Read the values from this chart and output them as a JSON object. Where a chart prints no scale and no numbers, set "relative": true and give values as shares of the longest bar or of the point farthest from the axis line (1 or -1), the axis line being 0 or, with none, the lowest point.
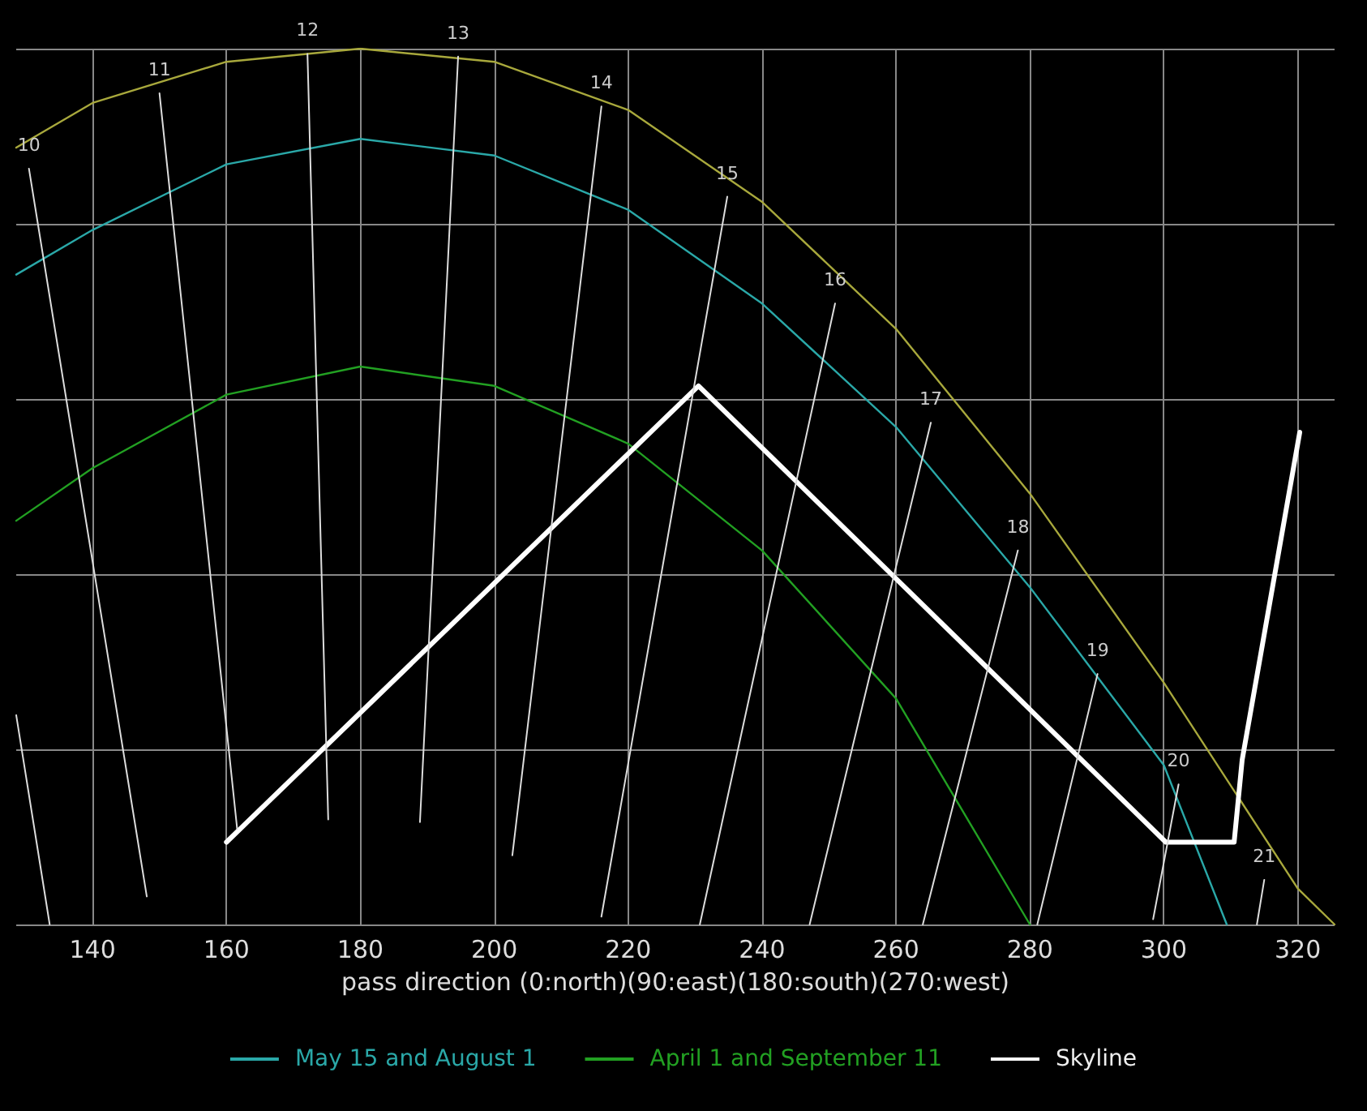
{
  "chart_data": {
    "type": "line",
    "relative": true,
    "xlabel": "pass direction (0:north)(90:east)(180:south)(270:west)",
    "xlim": [
      128.6,
      325.5
    ],
    "xticks": [
      140,
      160,
      180,
      200,
      220,
      240,
      260,
      280,
      300,
      320
    ],
    "tick_labels": "x",
    "grid": true,
    "legend": "bottom",
    "marker": "none",
    "series": [
      {
        "color": "#a8a83c",
        "x": [
          128.6,
          140,
          160,
          180,
          200,
          220,
          240,
          260,
          280,
          300,
          320,
          325.5
        ],
        "values": [
          0.887,
          0.938,
          0.985,
          1,
          0.985,
          0.93,
          0.825,
          0.68,
          0.492,
          0.276,
          0.041,
          0
        ]
      },
      {
        "name": "May 15 and August 1",
        "color": "#2aa8a8",
        "x": [
          128.6,
          140,
          160,
          180,
          200,
          220,
          240,
          260,
          280,
          300,
          309.4
        ],
        "values": [
          0.742,
          0.793,
          0.868,
          0.897,
          0.878,
          0.816,
          0.709,
          0.568,
          0.385,
          0.182,
          0
        ]
      },
      {
        "name": "April 1 and September 11",
        "color": "#22a022",
        "x": [
          128.6,
          140,
          160,
          180,
          200,
          220,
          240,
          260,
          280
        ],
        "values": [
          0.461,
          0.521,
          0.605,
          0.637,
          0.615,
          0.549,
          0.427,
          0.258,
          0
        ]
      },
      {
        "name": "Skyline",
        "color": "#ffffff",
        "x": [
          160,
          230.5,
          300.3,
          310.5,
          311.7,
          320.3
        ],
        "values": [
          0.094,
          0.615,
          0.094,
          0.094,
          0.188,
          0.562
        ]
      },
      {
        "color": "#dddddd",
        "x": [
          128.6,
          133.6
        ],
        "values": [
          0.239,
          0
        ]
      },
      {
        "color": "#dddddd",
        "x": [
          130.5,
          148.1
        ],
        "values": [
          0.863,
          0.032
        ]
      },
      {
        "color": "#dddddd",
        "x": [
          150.0,
          161.6
        ],
        "values": [
          0.949,
          0.109
        ]
      },
      {
        "color": "#dddddd",
        "x": [
          172.1,
          175.2
        ],
        "values": [
          0.994,
          0.12
        ]
      },
      {
        "color": "#dddddd",
        "x": [
          194.6,
          188.9
        ],
        "values": [
          0.991,
          0.117
        ]
      },
      {
        "color": "#dddddd",
        "x": [
          216.0,
          202.7
        ],
        "values": [
          0.934,
          0.079
        ]
      },
      {
        "color": "#dddddd",
        "x": [
          234.8,
          216.0
        ],
        "values": [
          0.831,
          0.009
        ]
      },
      {
        "color": "#dddddd",
        "x": [
          250.9,
          230.7
        ],
        "values": [
          0.709,
          0
        ]
      },
      {
        "color": "#dddddd",
        "x": [
          265.2,
          247.1
        ],
        "values": [
          0.573,
          0
        ]
      },
      {
        "color": "#dddddd",
        "x": [
          278.2,
          264.0
        ],
        "values": [
          0.427,
          0
        ]
      },
      {
        "color": "#dddddd",
        "x": [
          290.1,
          281.1
        ],
        "values": [
          0.286,
          0
        ]
      },
      {
        "color": "#dddddd",
        "x": [
          302.2,
          298.4
        ],
        "values": [
          0.16,
          0.006
        ]
      },
      {
        "color": "#dddddd",
        "x": [
          315.0,
          313.9
        ],
        "values": [
          0.051,
          0
        ]
      }
    ],
    "annotations": [
      {
        "text": "10",
        "x": 130.5,
        "y": 0.863
      },
      {
        "text": "11",
        "x": 150.0,
        "y": 0.949
      },
      {
        "text": "12",
        "x": 172.1,
        "y": 0.994
      },
      {
        "text": "13",
        "x": 194.6,
        "y": 0.991
      },
      {
        "text": "14",
        "x": 216.0,
        "y": 0.934
      },
      {
        "text": "15",
        "x": 234.8,
        "y": 0.831
      },
      {
        "text": "16",
        "x": 250.9,
        "y": 0.709
      },
      {
        "text": "17",
        "x": 265.2,
        "y": 0.573
      },
      {
        "text": "18",
        "x": 278.2,
        "y": 0.427
      },
      {
        "text": "19",
        "x": 290.1,
        "y": 0.286
      },
      {
        "text": "20",
        "x": 302.2,
        "y": 0.16
      },
      {
        "text": "21",
        "x": 315.0,
        "y": 0.051
      }
    ]
  }
}
